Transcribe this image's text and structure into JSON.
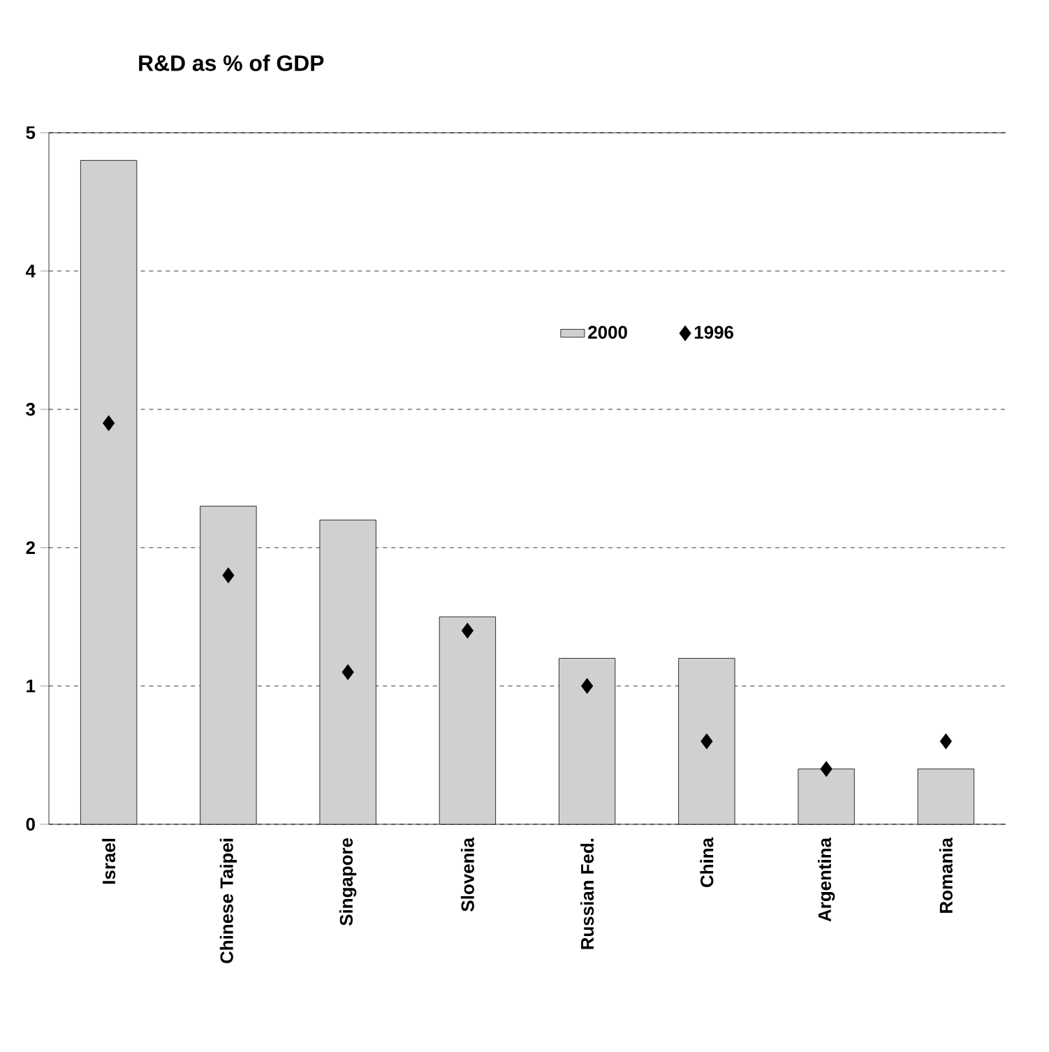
{
  "chart_data": {
    "type": "bar",
    "title": "R&D as % of GDP",
    "categories": [
      "Israel",
      "Chinese Taipei",
      "Singapore",
      "Slovenia",
      "Russian Fed.",
      "China",
      "Argentina",
      "Romania"
    ],
    "series": [
      {
        "name": "2000",
        "color": "#d0d0d0",
        "values": [
          4.8,
          2.3,
          2.2,
          1.5,
          1.2,
          1.2,
          0.4,
          0.4
        ]
      },
      {
        "name": "1996",
        "type": "scatter",
        "marker": "diamond",
        "color": "#000000",
        "values": [
          2.9,
          1.8,
          1.1,
          1.4,
          1.0,
          0.6,
          0.4,
          0.6
        ]
      }
    ],
    "ylim": [
      0,
      5
    ],
    "yticks": [
      0,
      1,
      2,
      3,
      4,
      5
    ],
    "grid": "y",
    "legend": "top right"
  }
}
